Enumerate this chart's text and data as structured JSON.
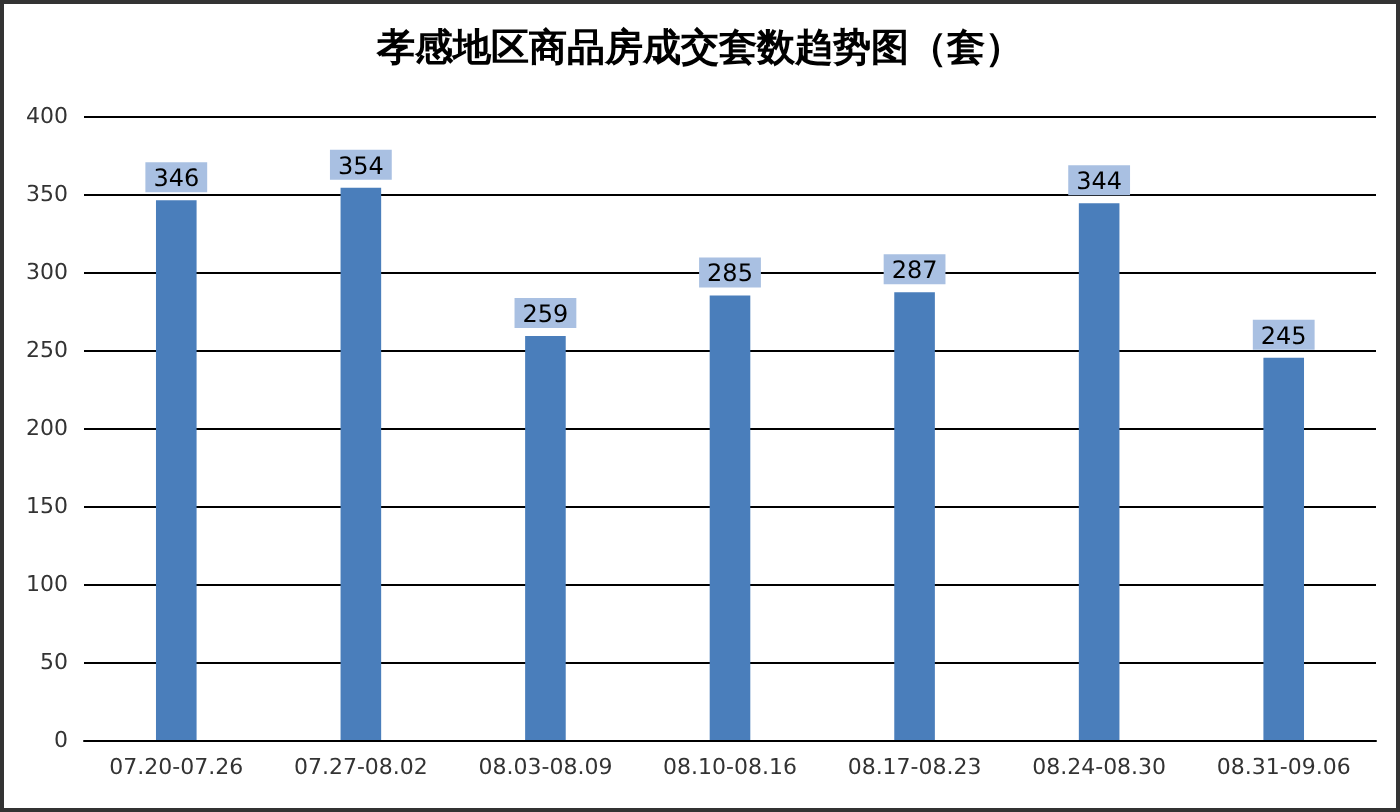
{
  "chart_data": {
    "type": "bar",
    "title": "孝感地区商品房成交套数趋势图（套）",
    "categories": [
      "07.20-07.26",
      "07.27-08.02",
      "08.03-08.09",
      "08.10-08.16",
      "08.17-08.23",
      "08.24-08.30",
      "08.31-09.06"
    ],
    "values": [
      346,
      354,
      259,
      285,
      287,
      344,
      245
    ],
    "color": "#4a7ebb",
    "ylim": [
      0,
      400
    ],
    "yticks": [
      0,
      50,
      100,
      150,
      200,
      250,
      300,
      350,
      400
    ],
    "grid": "y",
    "data_labels": true
  }
}
